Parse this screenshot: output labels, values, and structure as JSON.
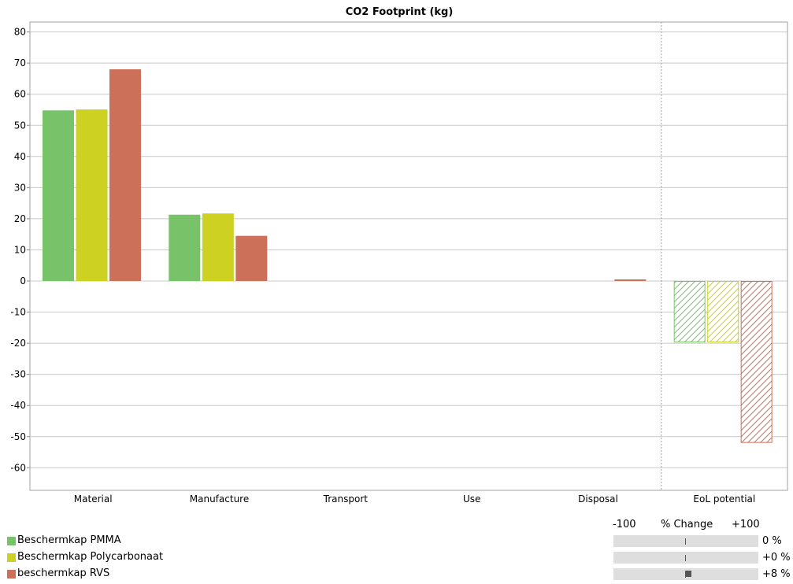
{
  "chart_data": {
    "type": "bar",
    "title": "CO2 Footprint (kg)",
    "categories": [
      "Material",
      "Manufacture",
      "Transport",
      "Use",
      "Disposal",
      "EoL potential"
    ],
    "ylim": [
      -68,
      83
    ],
    "yticks": [
      80,
      70,
      60,
      50,
      40,
      30,
      20,
      10,
      0,
      -10,
      -20,
      -30,
      -40,
      -50,
      -60
    ],
    "grid": "horizontal",
    "hatched_categories": [
      "EoL potential"
    ],
    "legend_position": "bottom-left",
    "series": [
      {
        "name": "Beschermkap PMMA",
        "color": "#78c26a",
        "values": [
          54.8,
          21.3,
          0,
          0,
          0,
          -19.7
        ]
      },
      {
        "name": "Beschermkap Polycarbonaat",
        "color": "#cdd122",
        "values": [
          55.1,
          21.7,
          0,
          0,
          0,
          -19.7
        ]
      },
      {
        "name": "beschermkap RVS",
        "color": "#cc7059",
        "values": [
          68.0,
          14.5,
          0,
          0,
          0.5,
          -52.0
        ]
      }
    ]
  },
  "percent_change": {
    "min_label": "-100",
    "title": "% Change",
    "max_label": "+100",
    "rows": [
      {
        "value": 0,
        "label": "0 %"
      },
      {
        "value": 0.4,
        "label": "+0 %"
      },
      {
        "value": 8,
        "label": "+8 %"
      }
    ]
  }
}
